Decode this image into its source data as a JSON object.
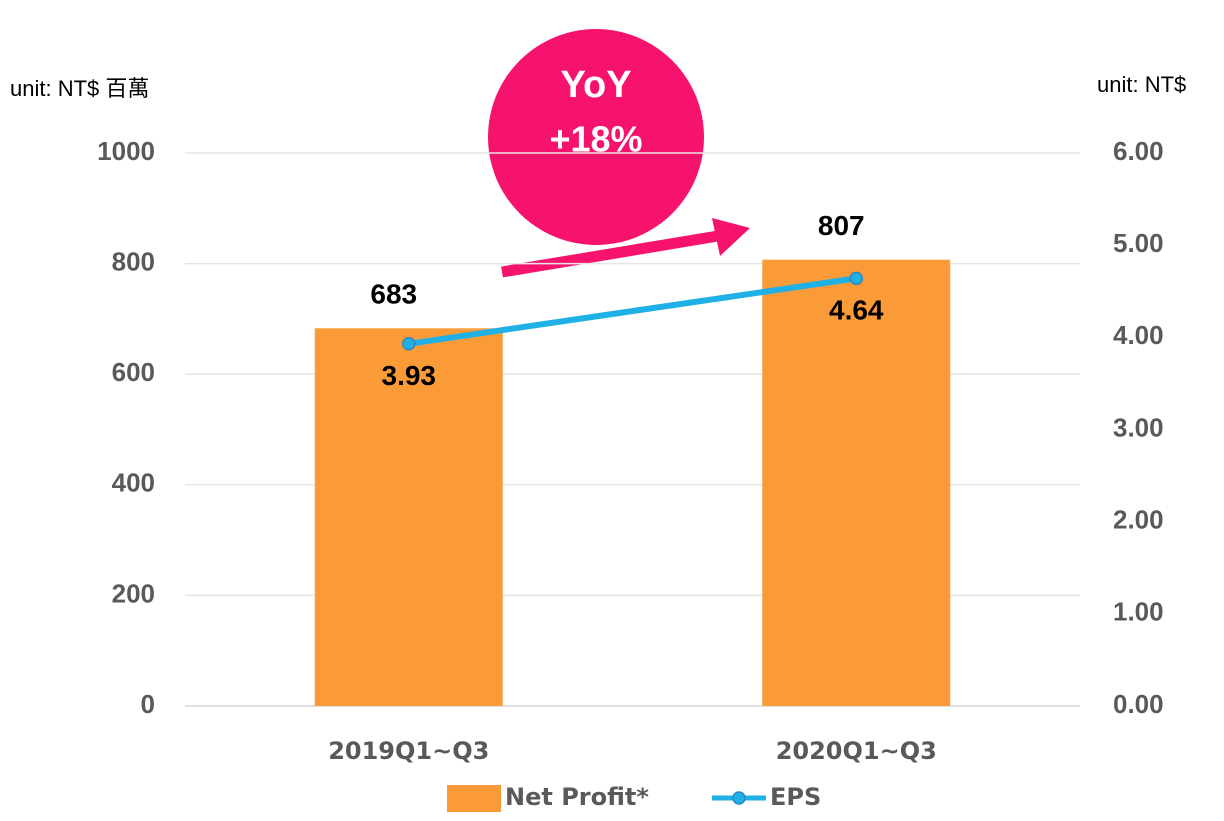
{
  "chart_data": {
    "type": "bar_line",
    "ylabel": "unit: NT$ 百萬",
    "y2label": "unit: NT$",
    "annotations": [
      "YoY",
      "+18%"
    ],
    "categories": [
      "2019Q1~Q3",
      "2020Q1~Q3"
    ],
    "series": [
      {
        "name": "Net Profit*",
        "color": "#fb9b37",
        "type": "bar",
        "values": [
          683,
          807
        ]
      },
      {
        "name": "EPS",
        "color": "#1fb1e6",
        "type": "line",
        "axis": "y2",
        "values": [
          3.93,
          4.64
        ]
      }
    ],
    "ylim": [
      0,
      1000
    ],
    "yticks": [
      0,
      200,
      400,
      600,
      800,
      1000
    ],
    "y2lim": [
      0,
      6
    ],
    "y2ticks": [
      {
        "value": 0,
        "label": "0.00"
      },
      {
        "value": 1,
        "label": "1.00"
      },
      {
        "value": 2,
        "label": "2.00"
      },
      {
        "value": 3,
        "label": "3.00"
      },
      {
        "value": 4,
        "label": "4.00"
      },
      {
        "value": 5,
        "label": "5.00"
      },
      {
        "value": 6,
        "label": "6.00"
      }
    ],
    "grid": true,
    "legend": "bottom"
  }
}
